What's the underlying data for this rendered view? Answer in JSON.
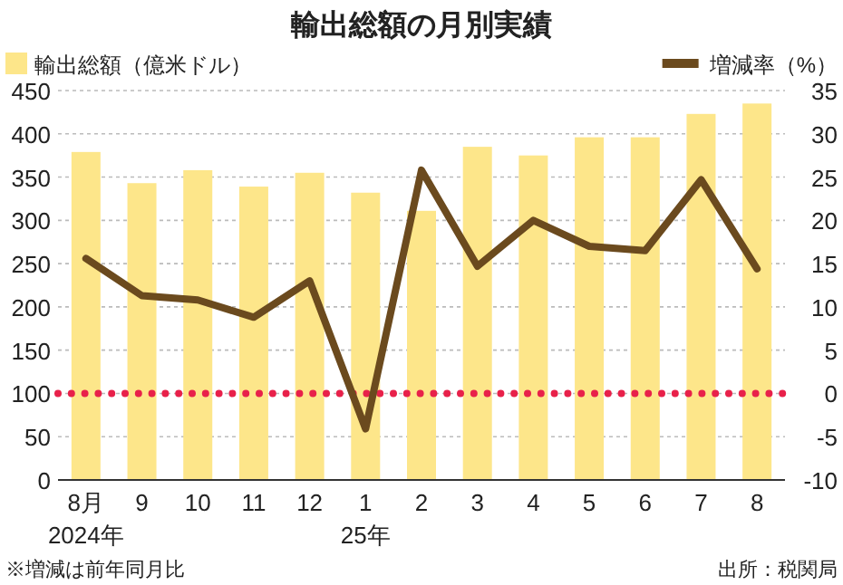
{
  "chart_data": {
    "type": "bar",
    "title": "輸出総額の月別実績",
    "categories": [
      "8月\n2024年",
      "9",
      "10",
      "11",
      "12",
      "1\n25年",
      "2",
      "3",
      "4",
      "5",
      "6",
      "7",
      "8"
    ],
    "series": [
      {
        "name": "輸出総額（億米ドル）",
        "color": "#fde68a",
        "values": [
          379,
          343,
          358,
          339,
          355,
          332,
          311,
          385,
          375,
          396,
          396,
          423,
          435
        ]
      },
      {
        "name": "増減率（%）",
        "type": "line",
        "axis": "y2",
        "color": "#6b4a1e",
        "values": [
          15.6,
          11.3,
          10.8,
          8.8,
          13.0,
          -4.1,
          25.8,
          14.7,
          20.0,
          17.0,
          16.5,
          24.7,
          14.4
        ]
      }
    ],
    "ylim": [
      0,
      450
    ],
    "yticks": [
      0,
      50,
      100,
      150,
      200,
      250,
      300,
      350,
      400,
      450
    ],
    "y2lim": [
      -10,
      35
    ],
    "y2ticks": [
      -10,
      -5,
      0,
      5,
      10,
      15,
      20,
      25,
      30,
      35
    ],
    "ref_lines": [
      {
        "axis": "y2",
        "value": 0,
        "color": "#e8214a",
        "line_style": "dotted"
      }
    ],
    "grid": "y",
    "legend": "top",
    "annotations": [
      "※増減は前年同月比",
      "出所：税関局"
    ]
  }
}
